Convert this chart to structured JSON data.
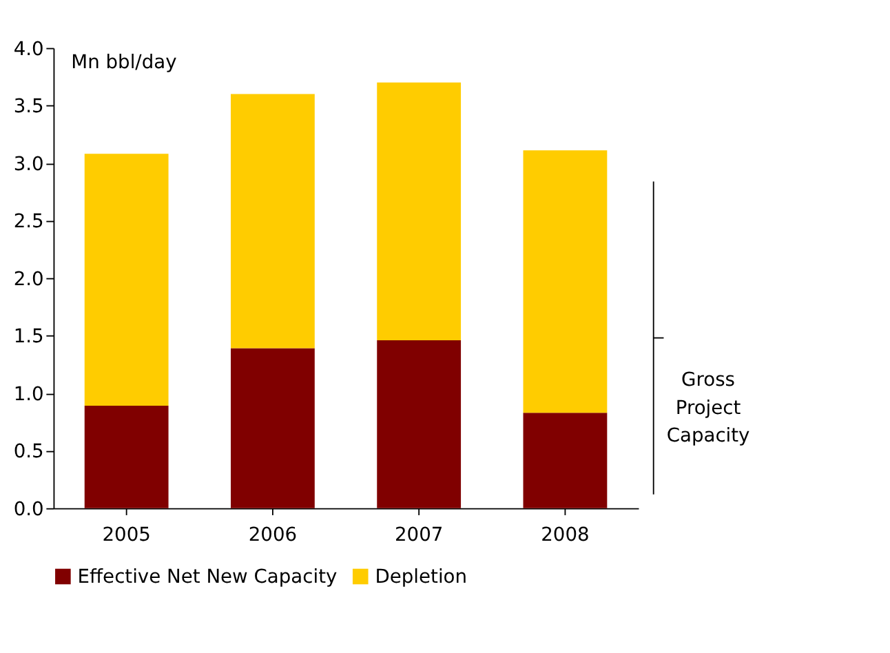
{
  "chart_data": {
    "type": "bar",
    "stacked": true,
    "ylabel": "Mn bbl/day",
    "categories": [
      "2005",
      "2006",
      "2007",
      "2008"
    ],
    "series": [
      {
        "name": "Effective Net New Capacity",
        "color": "#800000",
        "values": [
          0.89,
          1.39,
          1.46,
          0.83
        ]
      },
      {
        "name": "Depletion",
        "color": "#ffcc00",
        "values": [
          2.19,
          2.21,
          2.24,
          2.28
        ]
      }
    ],
    "ylim": [
      0,
      4
    ],
    "yticks": [
      {
        "value": 0,
        "label": "0.0"
      },
      0.5,
      {
        "value": 1,
        "label": "1.0"
      },
      1.5,
      {
        "value": 2,
        "label": "2.0"
      },
      2.5,
      {
        "value": 3,
        "label": "3.0"
      },
      3.5,
      {
        "value": 4,
        "label": "4.0"
      }
    ],
    "annotations": [
      "Gross Project Capacity"
    ],
    "grid": false,
    "legend": "bottom"
  }
}
